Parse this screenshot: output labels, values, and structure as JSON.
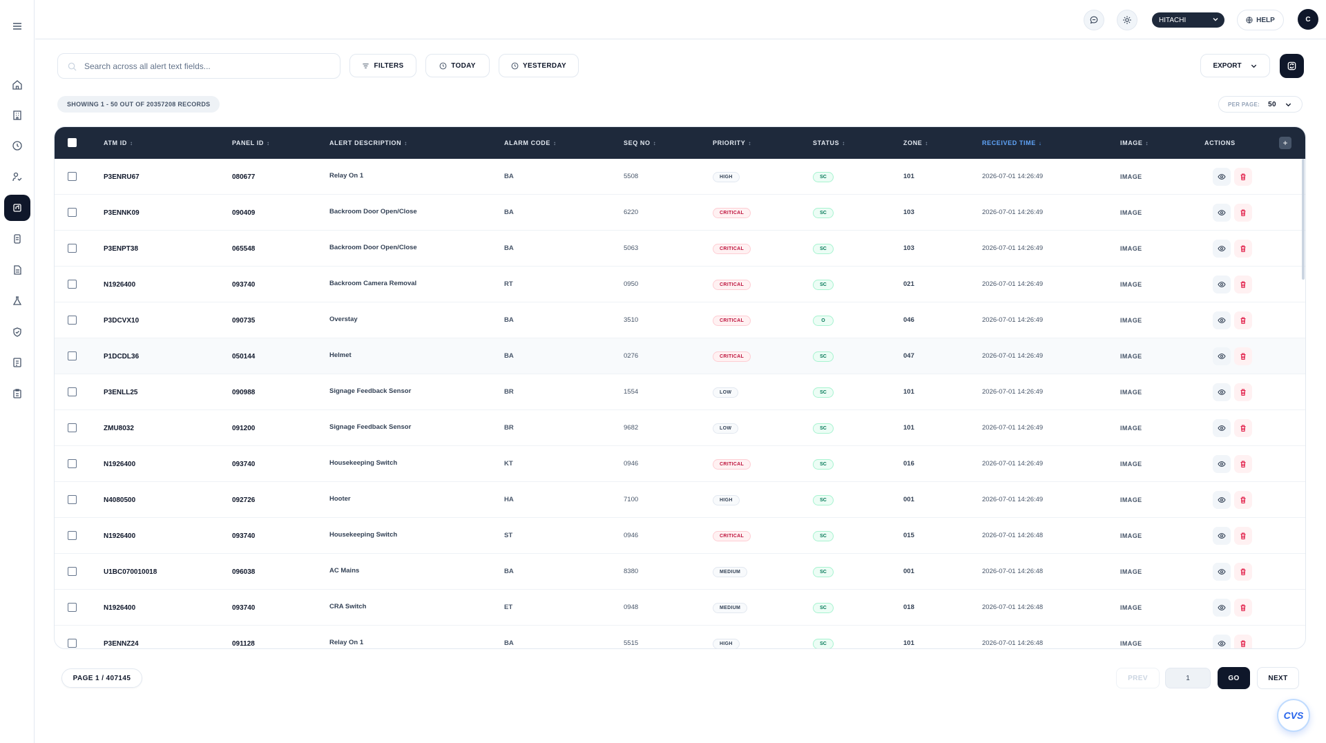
{
  "topbar": {
    "brand_select": "HITACHI",
    "help_label": "HELP",
    "avatar_initial": "C"
  },
  "toolbar": {
    "search_placeholder": "Search across all alert text fields...",
    "filters_label": "FILTERS",
    "today_label": "TODAY",
    "yesterday_label": "YESTERDAY",
    "export_label": "EXPORT"
  },
  "records": {
    "summary": "SHOWING 1 - 50 OUT OF 20357208 RECORDS",
    "per_page_label": "PER PAGE:",
    "per_page_value": "50"
  },
  "table": {
    "columns": [
      "ATM ID",
      "PANEL ID",
      "ALERT DESCRIPTION",
      "ALARM CODE",
      "SEQ NO",
      "PRIORITY",
      "STATUS",
      "ZONE",
      "RECEIVED TIME",
      "IMAGE",
      "ACTIONS"
    ],
    "sort_indicator": "↕",
    "active_sort_indicator": "↓",
    "plus_label": "+",
    "rows": [
      {
        "atm": "P3ENRU67",
        "panel": "080677",
        "desc": "Relay On 1",
        "code": "BA",
        "seq": "5508",
        "priority": "HIGH",
        "status": "SC",
        "zone": "101",
        "time": "2026-07-01 14:26:49",
        "image": "IMAGE"
      },
      {
        "atm": "P3ENNK09",
        "panel": "090409",
        "desc": "Backroom Door Open/Close",
        "code": "BA",
        "seq": "6220",
        "priority": "CRITICAL",
        "status": "SC",
        "zone": "103",
        "time": "2026-07-01 14:26:49",
        "image": "IMAGE"
      },
      {
        "atm": "P3ENPT38",
        "panel": "065548",
        "desc": "Backroom Door Open/Close",
        "code": "BA",
        "seq": "5063",
        "priority": "CRITICAL",
        "status": "SC",
        "zone": "103",
        "time": "2026-07-01 14:26:49",
        "image": "IMAGE"
      },
      {
        "atm": "N1926400",
        "panel": "093740",
        "desc": "Backroom Camera Removal",
        "code": "RT",
        "seq": "0950",
        "priority": "CRITICAL",
        "status": "SC",
        "zone": "021",
        "time": "2026-07-01 14:26:49",
        "image": "IMAGE"
      },
      {
        "atm": "P3DCVX10",
        "panel": "090735",
        "desc": "Overstay",
        "code": "BA",
        "seq": "3510",
        "priority": "CRITICAL",
        "status": "O",
        "zone": "046",
        "time": "2026-07-01 14:26:49",
        "image": "IMAGE"
      },
      {
        "atm": "P1DCDL36",
        "panel": "050144",
        "desc": "Helmet",
        "code": "BA",
        "seq": "0276",
        "priority": "CRITICAL",
        "status": "SC",
        "zone": "047",
        "time": "2026-07-01 14:26:49",
        "image": "IMAGE"
      },
      {
        "atm": "P3ENLL25",
        "panel": "090988",
        "desc": "Signage Feedback Sensor",
        "code": "BR",
        "seq": "1554",
        "priority": "LOW",
        "status": "SC",
        "zone": "101",
        "time": "2026-07-01 14:26:49",
        "image": "IMAGE"
      },
      {
        "atm": "ZMU8032",
        "panel": "091200",
        "desc": "Signage Feedback Sensor",
        "code": "BR",
        "seq": "9682",
        "priority": "LOW",
        "status": "SC",
        "zone": "101",
        "time": "2026-07-01 14:26:49",
        "image": "IMAGE"
      },
      {
        "atm": "N1926400",
        "panel": "093740",
        "desc": "Housekeeping Switch",
        "code": "KT",
        "seq": "0946",
        "priority": "CRITICAL",
        "status": "SC",
        "zone": "016",
        "time": "2026-07-01 14:26:49",
        "image": "IMAGE"
      },
      {
        "atm": "N4080500",
        "panel": "092726",
        "desc": "Hooter",
        "code": "HA",
        "seq": "7100",
        "priority": "HIGH",
        "status": "SC",
        "zone": "001",
        "time": "2026-07-01 14:26:49",
        "image": "IMAGE"
      },
      {
        "atm": "N1926400",
        "panel": "093740",
        "desc": "Housekeeping Switch",
        "code": "ST",
        "seq": "0946",
        "priority": "CRITICAL",
        "status": "SC",
        "zone": "015",
        "time": "2026-07-01 14:26:48",
        "image": "IMAGE"
      },
      {
        "atm": "U1BC070010018",
        "panel": "096038",
        "desc": "AC Mains",
        "code": "BA",
        "seq": "8380",
        "priority": "MEDIUM",
        "status": "SC",
        "zone": "001",
        "time": "2026-07-01 14:26:48",
        "image": "IMAGE"
      },
      {
        "atm": "N1926400",
        "panel": "093740",
        "desc": "CRA Switch",
        "code": "ET",
        "seq": "0948",
        "priority": "MEDIUM",
        "status": "SC",
        "zone": "018",
        "time": "2026-07-01 14:26:48",
        "image": "IMAGE"
      },
      {
        "atm": "P3ENNZ24",
        "panel": "091128",
        "desc": "Relay On 1",
        "code": "BA",
        "seq": "5515",
        "priority": "HIGH",
        "status": "SC",
        "zone": "101",
        "time": "2026-07-01 14:26:48",
        "image": "IMAGE"
      }
    ]
  },
  "pagination": {
    "page_label": "PAGE 1 / 407145",
    "prev_label": "PREV",
    "page_input_value": "1",
    "go_label": "GO",
    "next_label": "NEXT"
  },
  "fab_label": "CVS",
  "colors": {
    "header_bg": "#1e293b",
    "accent": "#0f172a",
    "critical": "#be123c",
    "status_ok": "#047857",
    "active_sort": "#60a5fa"
  },
  "sidebar_icons": [
    "menu-icon",
    "home-icon",
    "building-icon",
    "clock-icon",
    "user-route-icon",
    "alerts-icon",
    "database-icon",
    "document-icon",
    "flask-icon",
    "shield-icon",
    "report-icon",
    "clipboard-icon"
  ]
}
